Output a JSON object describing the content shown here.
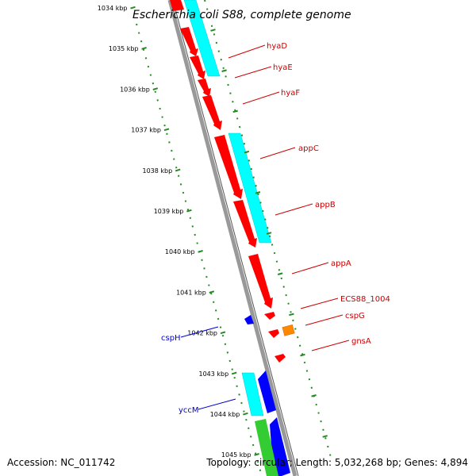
{
  "title": "Escherichia coli S88, complete genome",
  "footer": {
    "accession": "Accession: NC_011742",
    "summary": "Topology: circular; Length: 5,032,268 bp; Genes: 4,894"
  },
  "colors": {
    "forward_cds": "#ff0000",
    "reverse_cds": "#0000ff",
    "cyan_feature": "#00ffff",
    "green_feature": "#33cc33",
    "orange_feature": "#ff8800",
    "backbone": "#888888",
    "ruler": "#228b22",
    "label_red": "#cc0000",
    "label_blue": "#0000cc"
  },
  "ruler": {
    "labels": [
      "1034 kbp",
      "1035 kbp",
      "1036 kbp",
      "1037 kbp",
      "1038 kbp",
      "1039 kbp",
      "1040 kbp",
      "1041 kbp",
      "1042 kbp",
      "1043 kbp",
      "1044 kbp",
      "1045 kbp"
    ]
  },
  "gene_labels": {
    "hyaD": "hyaD",
    "hyaE": "hyaE",
    "hyaF": "hyaF",
    "appC": "appC",
    "appB": "appB",
    "appA": "appA",
    "ecs": "ECS88_1004",
    "cspG": "cspG",
    "gnsA": "gnsA",
    "cspH": "cspH",
    "yccM": "yccM"
  }
}
